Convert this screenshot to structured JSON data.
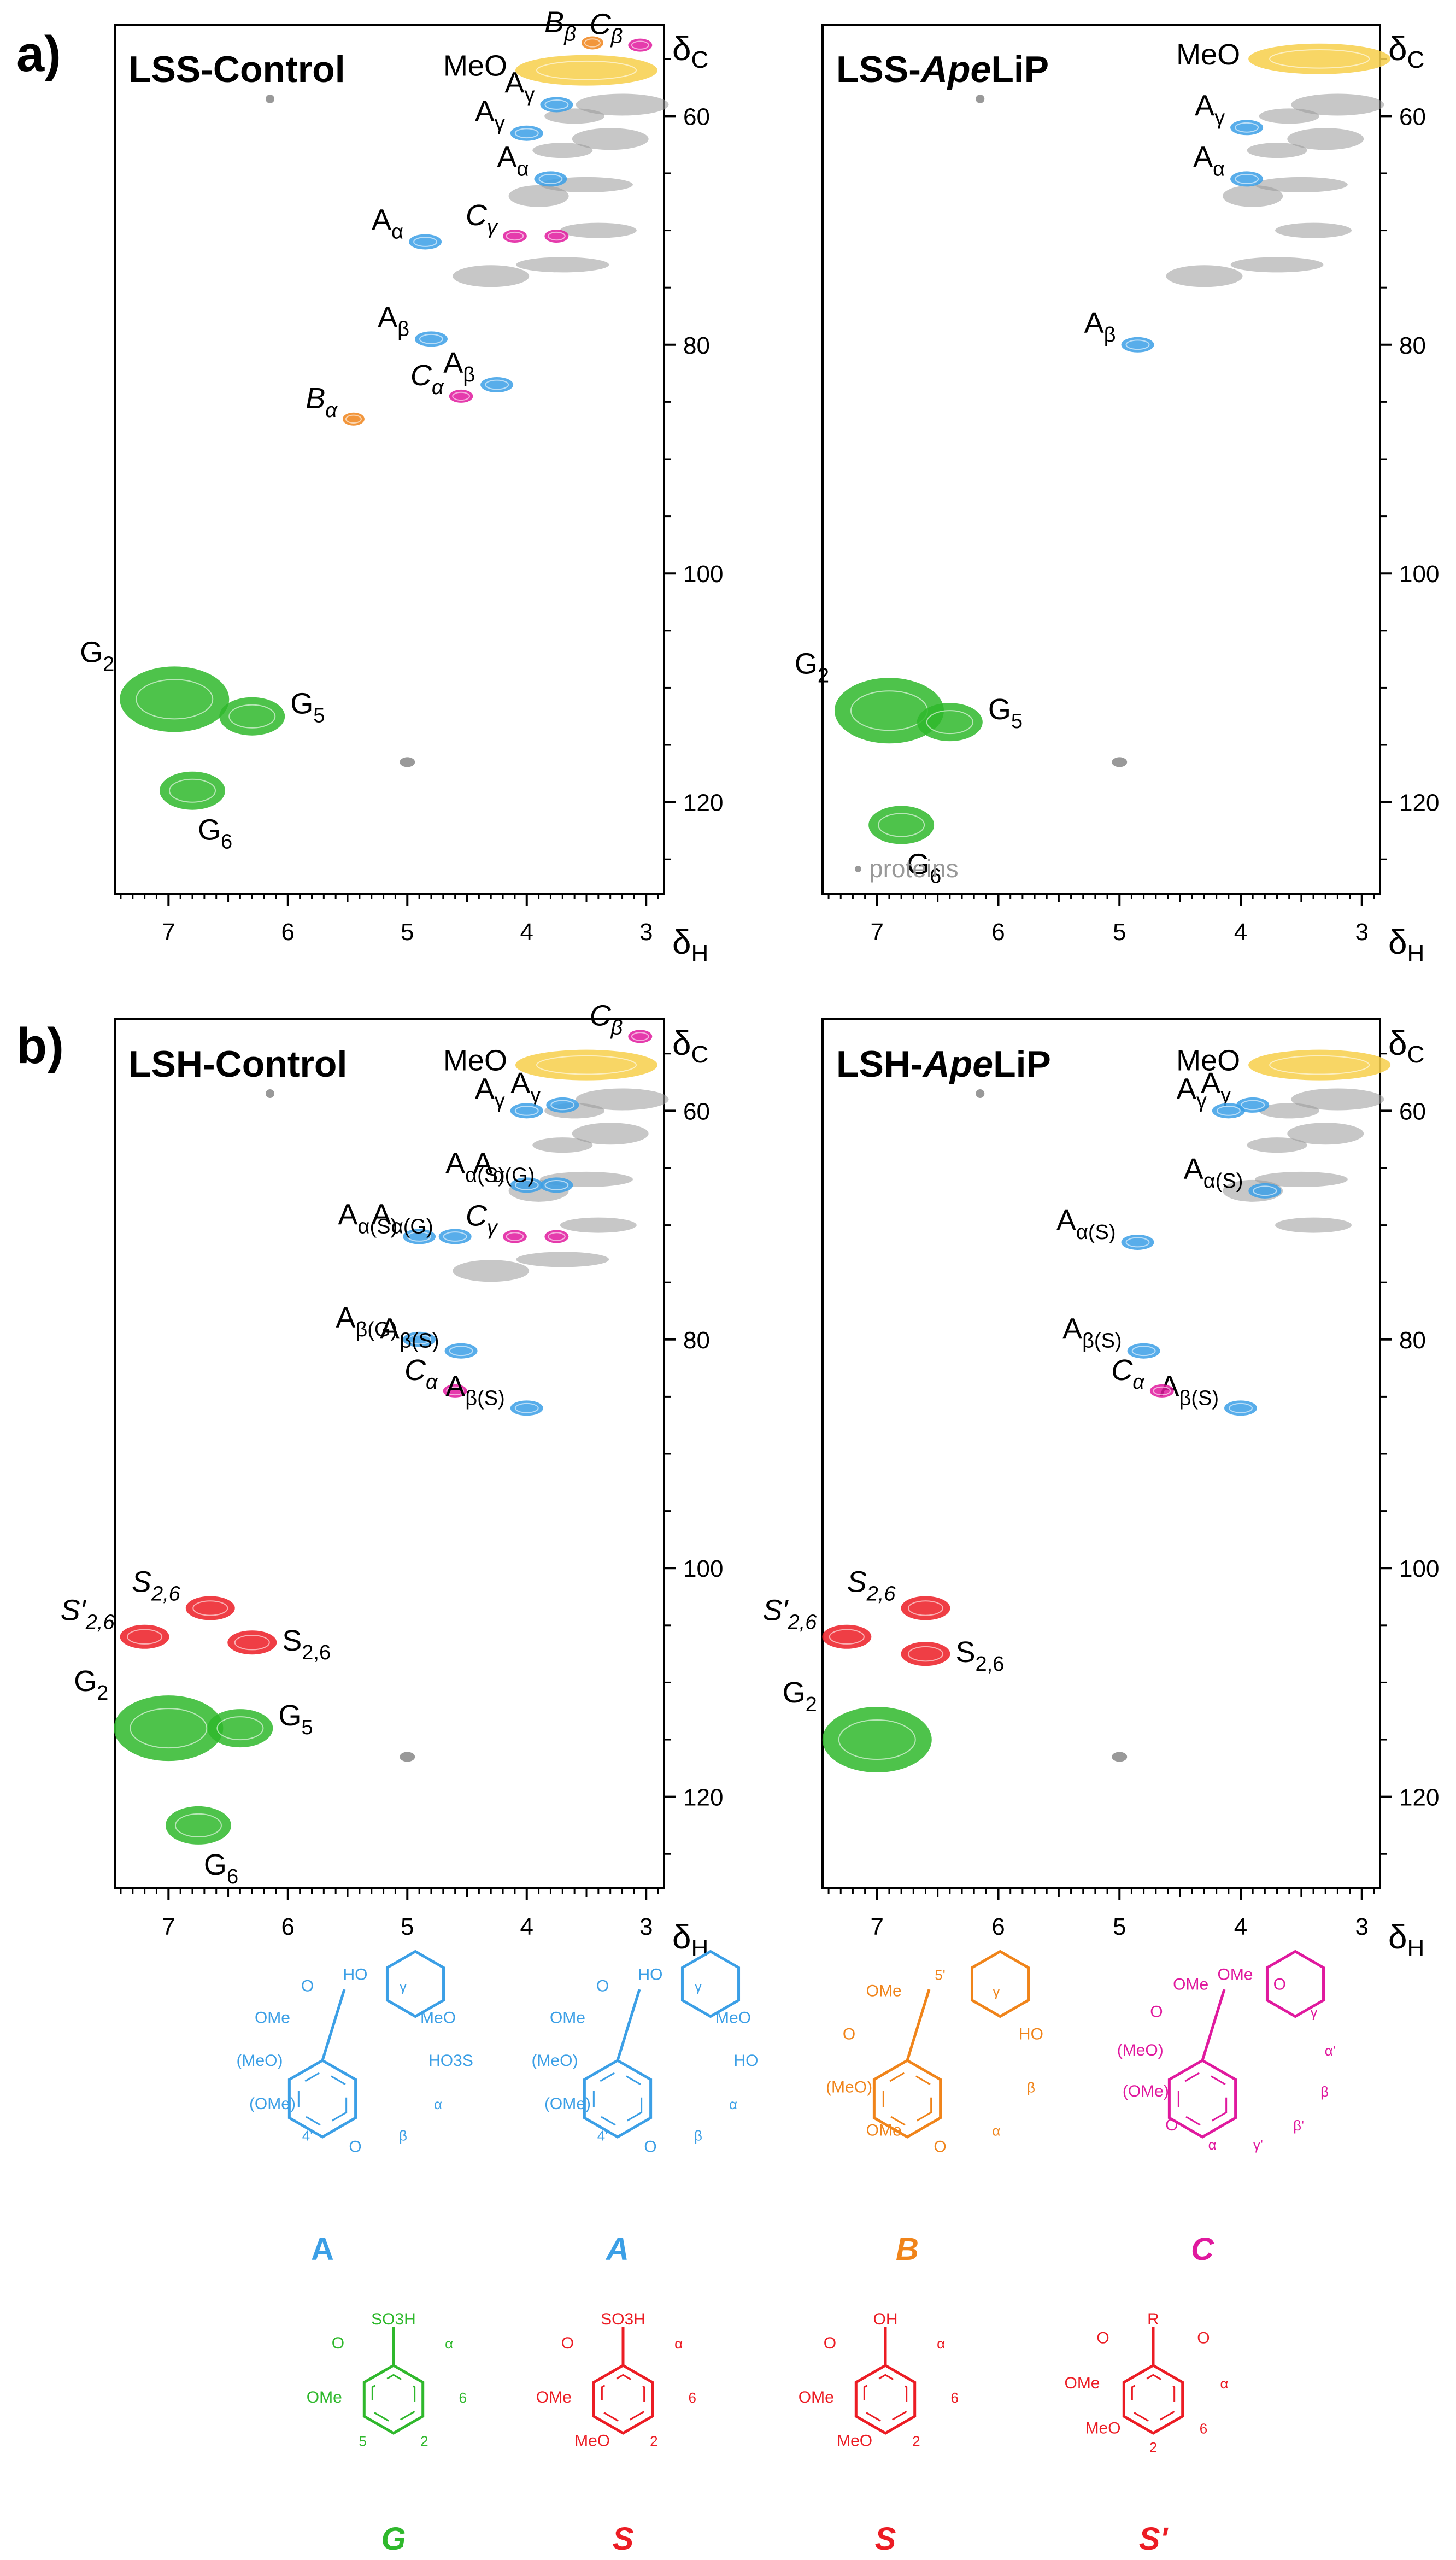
{
  "figure": {
    "panel_a_label": "a)",
    "panel_b_label": "b)",
    "axis_symbols": {
      "delta_c": "δ",
      "c_sub": "C",
      "delta_h": "δ",
      "h_sub": "H"
    },
    "x_ticks": [
      "7",
      "6",
      "5",
      "4",
      "3"
    ],
    "y_ticks": [
      "60",
      "80",
      "100",
      "120"
    ],
    "proteins_legend": "proteins"
  },
  "colors": {
    "A": "#3b9fe6",
    "B": "#f0841a",
    "C": "#e0199e",
    "G": "#2fb82c",
    "S": "#ec1c24",
    "MeO": "#f7cf4a",
    "proteins": "#999999",
    "frame": "#000000"
  },
  "chart_data": [
    {
      "type": "scatter",
      "title": "LSS-Control",
      "xlabel": "δH",
      "ylabel": "δC",
      "xlim": [
        7.45,
        2.85
      ],
      "ylim": [
        128,
        52
      ],
      "series": [
        {
          "name": "MeO",
          "points": [
            {
              "x": 3.5,
              "y": 56,
              "label": "MeO"
            }
          ]
        },
        {
          "name": "B",
          "points": [
            {
              "x": 3.45,
              "y": 53.6,
              "label": "Bβ"
            },
            {
              "x": 5.45,
              "y": 86.5,
              "label": "Bα"
            }
          ]
        },
        {
          "name": "C",
          "points": [
            {
              "x": 3.05,
              "y": 53.8,
              "label": "Cβ"
            },
            {
              "x": 4.1,
              "y": 70.5,
              "label": "Cγ"
            },
            {
              "x": 3.75,
              "y": 70.5,
              "label": ""
            },
            {
              "x": 4.55,
              "y": 84.5,
              "label": "Cα"
            }
          ]
        },
        {
          "name": "A",
          "points": [
            {
              "x": 3.75,
              "y": 59,
              "label": "Aγ"
            },
            {
              "x": 4.0,
              "y": 61.5,
              "label": "Aγ"
            },
            {
              "x": 3.8,
              "y": 65.5,
              "label": "Aα"
            },
            {
              "x": 4.85,
              "y": 71,
              "label": "Aα"
            },
            {
              "x": 4.8,
              "y": 79.5,
              "label": "Aβ"
            },
            {
              "x": 4.25,
              "y": 83.5,
              "label": "Aβ"
            }
          ]
        },
        {
          "name": "G",
          "points": [
            {
              "x": 6.95,
              "y": 111,
              "label": "G2"
            },
            {
              "x": 6.3,
              "y": 112.5,
              "label": "G5"
            },
            {
              "x": 6.8,
              "y": 119,
              "label": "G6"
            }
          ]
        }
      ]
    },
    {
      "type": "scatter",
      "title": "LSS-ApeLiP",
      "title_parts": [
        "LSS-",
        "Ape",
        "LiP"
      ],
      "xlabel": "δH",
      "ylabel": "δC",
      "xlim": [
        7.45,
        2.85
      ],
      "ylim": [
        128,
        52
      ],
      "series": [
        {
          "name": "MeO",
          "points": [
            {
              "x": 3.35,
              "y": 55,
              "label": "MeO"
            }
          ]
        },
        {
          "name": "A",
          "points": [
            {
              "x": 3.95,
              "y": 61,
              "label": "Aγ"
            },
            {
              "x": 3.95,
              "y": 65.5,
              "label": "Aα"
            },
            {
              "x": 4.85,
              "y": 80,
              "label": "Aβ"
            }
          ]
        },
        {
          "name": "G",
          "points": [
            {
              "x": 6.9,
              "y": 112,
              "label": "G2"
            },
            {
              "x": 6.4,
              "y": 113,
              "label": "G5"
            },
            {
              "x": 6.8,
              "y": 122,
              "label": "G6"
            }
          ]
        }
      ]
    },
    {
      "type": "scatter",
      "title": "LSH-Control",
      "xlabel": "δH",
      "ylabel": "δC",
      "xlim": [
        7.45,
        2.85
      ],
      "ylim": [
        128,
        52
      ],
      "series": [
        {
          "name": "MeO",
          "points": [
            {
              "x": 3.5,
              "y": 56,
              "label": "MeO"
            }
          ]
        },
        {
          "name": "C",
          "points": [
            {
              "x": 3.05,
              "y": 53.5,
              "label": "Cβ"
            },
            {
              "x": 4.1,
              "y": 71,
              "label": "Cγ"
            },
            {
              "x": 3.75,
              "y": 71,
              "label": ""
            },
            {
              "x": 4.6,
              "y": 84.5,
              "label": "Cα"
            }
          ]
        },
        {
          "name": "A",
          "points": [
            {
              "x": 3.7,
              "y": 59.5,
              "label": "Aγ"
            },
            {
              "x": 4.0,
              "y": 60,
              "label": "Aγ"
            },
            {
              "x": 4.0,
              "y": 66.5,
              "label": "Aα(S)"
            },
            {
              "x": 3.75,
              "y": 66.5,
              "label": "Aα(G)"
            },
            {
              "x": 4.9,
              "y": 71,
              "label": "Aα(S)"
            },
            {
              "x": 4.6,
              "y": 71,
              "label": "Aα(G)"
            },
            {
              "x": 4.9,
              "y": 80,
              "label": "Aβ(G)"
            },
            {
              "x": 4.55,
              "y": 81,
              "label": "Aβ(S)"
            },
            {
              "x": 4.0,
              "y": 86,
              "label": "Aβ(S)"
            }
          ]
        },
        {
          "name": "S",
          "points": [
            {
              "x": 6.65,
              "y": 103.5,
              "label": "S2,6"
            },
            {
              "x": 6.3,
              "y": 106.5,
              "label": "S2,6"
            },
            {
              "x": 7.2,
              "y": 106,
              "label": "S'2,6"
            }
          ]
        },
        {
          "name": "G",
          "points": [
            {
              "x": 7.0,
              "y": 114,
              "label": "G2"
            },
            {
              "x": 6.4,
              "y": 114,
              "label": "G5"
            },
            {
              "x": 6.75,
              "y": 122.5,
              "label": "G6"
            }
          ]
        }
      ]
    },
    {
      "type": "scatter",
      "title": "LSH-ApeLiP",
      "title_parts": [
        "LSH-",
        "Ape",
        "LiP"
      ],
      "xlabel": "δH",
      "ylabel": "δC",
      "xlim": [
        7.45,
        2.85
      ],
      "ylim": [
        128,
        52
      ],
      "series": [
        {
          "name": "MeO",
          "points": [
            {
              "x": 3.35,
              "y": 56,
              "label": "MeO"
            }
          ]
        },
        {
          "name": "A",
          "points": [
            {
              "x": 3.9,
              "y": 59.5,
              "label": "Aγ"
            },
            {
              "x": 4.1,
              "y": 60,
              "label": "Aγ"
            },
            {
              "x": 3.8,
              "y": 67,
              "label": "Aα(S)"
            },
            {
              "x": 4.85,
              "y": 71.5,
              "label": "Aα(S)"
            },
            {
              "x": 4.8,
              "y": 81,
              "label": "Aβ(S)"
            },
            {
              "x": 4.0,
              "y": 86,
              "label": "Aβ(S)"
            }
          ]
        },
        {
          "name": "C",
          "points": [
            {
              "x": 4.65,
              "y": 84.5,
              "label": "Cα"
            }
          ]
        },
        {
          "name": "S",
          "points": [
            {
              "x": 6.6,
              "y": 103.5,
              "label": "S2,6"
            },
            {
              "x": 6.6,
              "y": 107.5,
              "label": "S2,6"
            },
            {
              "x": 7.25,
              "y": 106,
              "label": "S'2,6"
            }
          ]
        },
        {
          "name": "G",
          "points": [
            {
              "x": 7.0,
              "y": 115,
              "label": "G2"
            }
          ]
        }
      ]
    }
  ],
  "structures": [
    {
      "name": "A",
      "color": "A",
      "atoms": [
        "HO",
        "γ",
        "MeO",
        "HO3S",
        "α",
        "β",
        "O",
        "4'",
        "(OMe)",
        "(MeO)",
        "OMe",
        "O"
      ]
    },
    {
      "name": "A",
      "color": "A",
      "atoms": [
        "HO",
        "γ",
        "MeO",
        "HO",
        "α",
        "β",
        "O",
        "4'",
        "(OMe)",
        "(MeO)",
        "OMe",
        "O"
      ]
    },
    {
      "name": "B",
      "color": "B",
      "atoms": [
        "5'",
        "γ",
        "HO",
        "β",
        "α",
        "O",
        "OMe",
        "(MeO)",
        "O",
        "OMe"
      ]
    },
    {
      "name": "C",
      "color": "C",
      "atoms": [
        "OMe",
        "O",
        "γ",
        "α'",
        "β",
        "β'",
        "γ'",
        "α",
        "O",
        "(OMe)",
        "(MeO)",
        "O",
        "OMe"
      ]
    },
    {
      "name": "G",
      "color": "G",
      "atoms": [
        "SO3H",
        "α",
        "6",
        "2",
        "5",
        "OMe",
        "O"
      ]
    },
    {
      "name": "S",
      "color": "S",
      "atoms": [
        "SO3H",
        "α",
        "6",
        "2",
        "MeO",
        "OMe",
        "O"
      ]
    },
    {
      "name": "S",
      "color": "S",
      "atoms": [
        "OH",
        "α",
        "6",
        "2",
        "MeO",
        "OMe",
        "O"
      ]
    },
    {
      "name": "S'",
      "color": "S",
      "atoms": [
        "R",
        "O",
        "α",
        "6",
        "2",
        "MeO",
        "OMe",
        "O"
      ]
    }
  ]
}
